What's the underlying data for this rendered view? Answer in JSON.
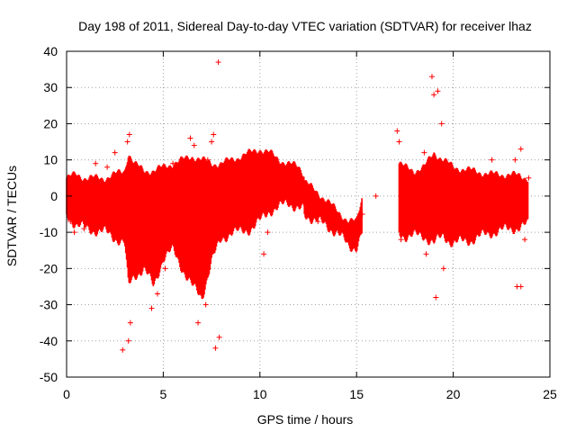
{
  "chart_data": {
    "type": "scatter",
    "title": "Day 198 of 2011, Sidereal Day-to-day VTEC variation (SDTVAR) for receiver lhaz",
    "xlabel": "GPS time / hours",
    "ylabel": "SDTVAR / TECUs",
    "xlim": [
      0,
      25
    ],
    "ylim": [
      -50,
      40
    ],
    "xticks": [
      0,
      5,
      10,
      15,
      20,
      25
    ],
    "yticks": [
      -50,
      -40,
      -30,
      -20,
      -10,
      0,
      10,
      20,
      30,
      40
    ],
    "xtick_labels": [
      "0",
      "5",
      "10",
      "15",
      "20",
      "25"
    ],
    "ytick_labels": [
      "-50",
      "-40",
      "-30",
      "-20",
      "-10",
      "0",
      "10",
      "20",
      "30",
      "40"
    ],
    "grid": true,
    "marker": "+",
    "colors": {
      "series": "#ff0000",
      "grid": "#a0a0a0",
      "axis": "#000000"
    },
    "series": [
      {
        "name": "SDTVAR",
        "envelope": {
          "x": [
            0.0,
            0.5,
            1.0,
            2.0,
            3.0,
            3.2,
            3.5,
            4.0,
            4.5,
            5.0,
            5.5,
            6.0,
            6.5,
            7.0,
            7.5,
            8.0,
            8.5,
            9.0,
            9.5,
            10.0,
            10.5,
            11.0,
            11.5,
            12.0,
            12.3
          ],
          "upper": [
            5,
            6,
            5,
            5,
            7,
            12,
            9,
            7,
            7,
            8,
            9,
            10,
            11,
            10,
            9,
            9,
            10,
            11,
            12,
            13,
            12,
            10,
            9,
            8,
            6
          ],
          "lower": [
            -5,
            -8,
            -9,
            -10,
            -13,
            -25,
            -22,
            -20,
            -25,
            -17,
            -15,
            -20,
            -25,
            -28,
            -18,
            -12,
            -10,
            -10,
            -9,
            -7,
            -4,
            -3,
            -2,
            -3,
            -4
          ]
        },
        "gap_segments": [
          {
            "x": [
              12.3,
              13.0,
              14.0,
              14.6,
              15.0,
              15.3
            ],
            "upper": [
              4,
              1,
              -4,
              -7,
              -7,
              0
            ],
            "lower": [
              -5,
              -7,
              -10,
              -14,
              -14,
              -10
            ]
          }
        ],
        "envelope_2": {
          "x": [
            17.2,
            17.5,
            18.0,
            18.5,
            19.0,
            19.5,
            20.0,
            21.0,
            22.0,
            23.0,
            23.9
          ],
          "upper": [
            9,
            8,
            7,
            8,
            12,
            10,
            8,
            7,
            6,
            6,
            5
          ],
          "lower": [
            -10,
            -11,
            -11,
            -11,
            -13,
            -11,
            -13,
            -12,
            -10,
            -9,
            -8
          ]
        },
        "points": [
          {
            "x": 2.9,
            "y": -42.5
          },
          {
            "x": 3.2,
            "y": -40
          },
          {
            "x": 3.3,
            "y": -35
          },
          {
            "x": 3.25,
            "y": 17
          },
          {
            "x": 3.15,
            "y": 15
          },
          {
            "x": 4.4,
            "y": -31
          },
          {
            "x": 4.7,
            "y": -27
          },
          {
            "x": 5.1,
            "y": -20
          },
          {
            "x": 5.5,
            "y": 9
          },
          {
            "x": 6.4,
            "y": 16
          },
          {
            "x": 6.6,
            "y": 14
          },
          {
            "x": 6.8,
            "y": -35
          },
          {
            "x": 7.2,
            "y": -30
          },
          {
            "x": 7.6,
            "y": 17
          },
          {
            "x": 7.7,
            "y": -42
          },
          {
            "x": 7.85,
            "y": 37
          },
          {
            "x": 7.9,
            "y": -39
          },
          {
            "x": 7.5,
            "y": 15
          },
          {
            "x": 7.3,
            "y": 10
          },
          {
            "x": 2.5,
            "y": 12
          },
          {
            "x": 2.1,
            "y": 8
          },
          {
            "x": 1.5,
            "y": 9
          },
          {
            "x": 0.4,
            "y": -10
          },
          {
            "x": 0.9,
            "y": -9
          },
          {
            "x": 10.2,
            "y": -16
          },
          {
            "x": 10.4,
            "y": -10
          },
          {
            "x": 12.5,
            "y": -5
          },
          {
            "x": 13.0,
            "y": -7
          },
          {
            "x": 15.3,
            "y": -5
          },
          {
            "x": 17.1,
            "y": 18
          },
          {
            "x": 17.2,
            "y": 15
          },
          {
            "x": 17.3,
            "y": -12
          },
          {
            "x": 18.5,
            "y": 12
          },
          {
            "x": 18.6,
            "y": -16
          },
          {
            "x": 18.9,
            "y": 33
          },
          {
            "x": 19.0,
            "y": 28
          },
          {
            "x": 19.1,
            "y": -28
          },
          {
            "x": 19.2,
            "y": 29
          },
          {
            "x": 19.4,
            "y": 20
          },
          {
            "x": 19.5,
            "y": -20
          },
          {
            "x": 22.0,
            "y": 10
          },
          {
            "x": 23.3,
            "y": -25
          },
          {
            "x": 23.5,
            "y": -25
          },
          {
            "x": 23.5,
            "y": 13
          },
          {
            "x": 23.2,
            "y": 10
          },
          {
            "x": 23.7,
            "y": -12
          },
          {
            "x": 23.9,
            "y": 5
          },
          {
            "x": 0.2,
            "y": -7
          },
          {
            "x": 16.0,
            "y": 0
          }
        ]
      }
    ]
  }
}
